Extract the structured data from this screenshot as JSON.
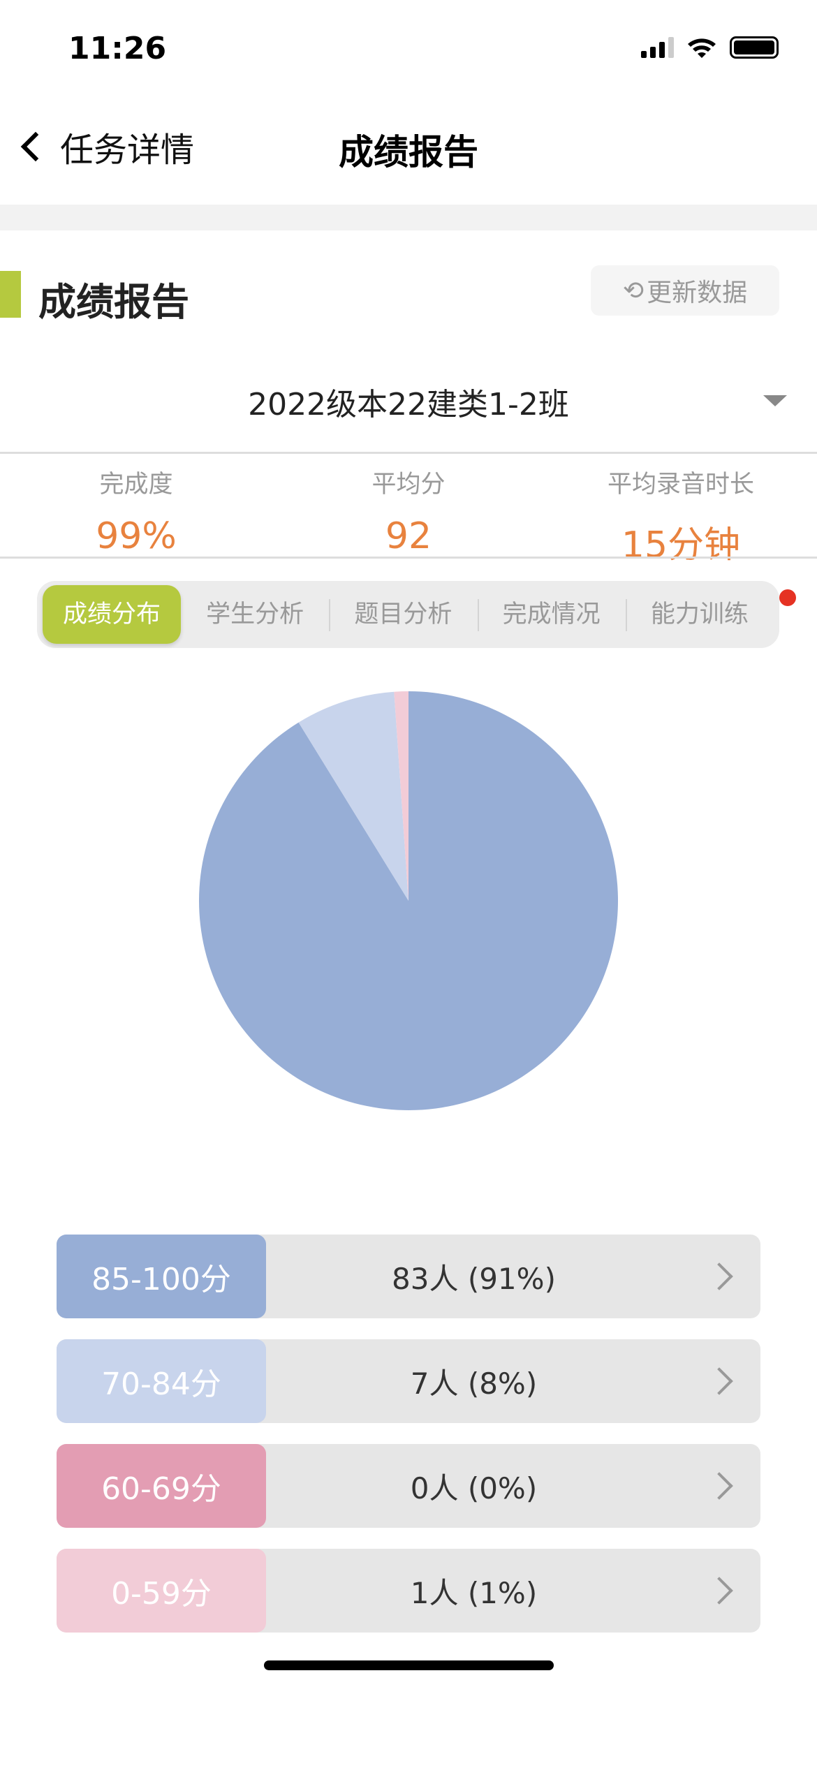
{
  "status_bar": {
    "time": "11:26"
  },
  "nav": {
    "back_label": "任务详情",
    "title": "成绩报告"
  },
  "section": {
    "title": "成绩报告",
    "refresh_label": "更新数据",
    "accent": "#b5c93f"
  },
  "class_selector": {
    "value": "2022级本22建类1-2班"
  },
  "stats": [
    {
      "label": "完成度",
      "value": "99%"
    },
    {
      "label": "平均分",
      "value": "92"
    },
    {
      "label": "平均录音时长",
      "value": "15分钟"
    }
  ],
  "tabs": [
    {
      "label": "成绩分布",
      "active": true
    },
    {
      "label": "学生分析"
    },
    {
      "label": "题目分析"
    },
    {
      "label": "完成情况"
    },
    {
      "label": "能力训练",
      "badge_dot": true
    }
  ],
  "chart_data": {
    "type": "pie",
    "categories": [
      "85-100分",
      "70-84分",
      "60-69分",
      "0-59分"
    ],
    "values": [
      83,
      7,
      0,
      1
    ],
    "colors": [
      "#97aed6",
      "#c8d4ec",
      "#e39db3",
      "#f2ccd7"
    ]
  },
  "distribution": [
    {
      "range": "85-100分",
      "count": "83人 (91%)",
      "color": "#97aed6"
    },
    {
      "range": "70-84分",
      "count": "7人 (8%)",
      "color": "#c8d4ec"
    },
    {
      "range": "60-69分",
      "count": "0人 (0%)",
      "color": "#e39db3"
    },
    {
      "range": "0-59分",
      "count": "1人 (1%)",
      "color": "#f2ccd7"
    }
  ]
}
